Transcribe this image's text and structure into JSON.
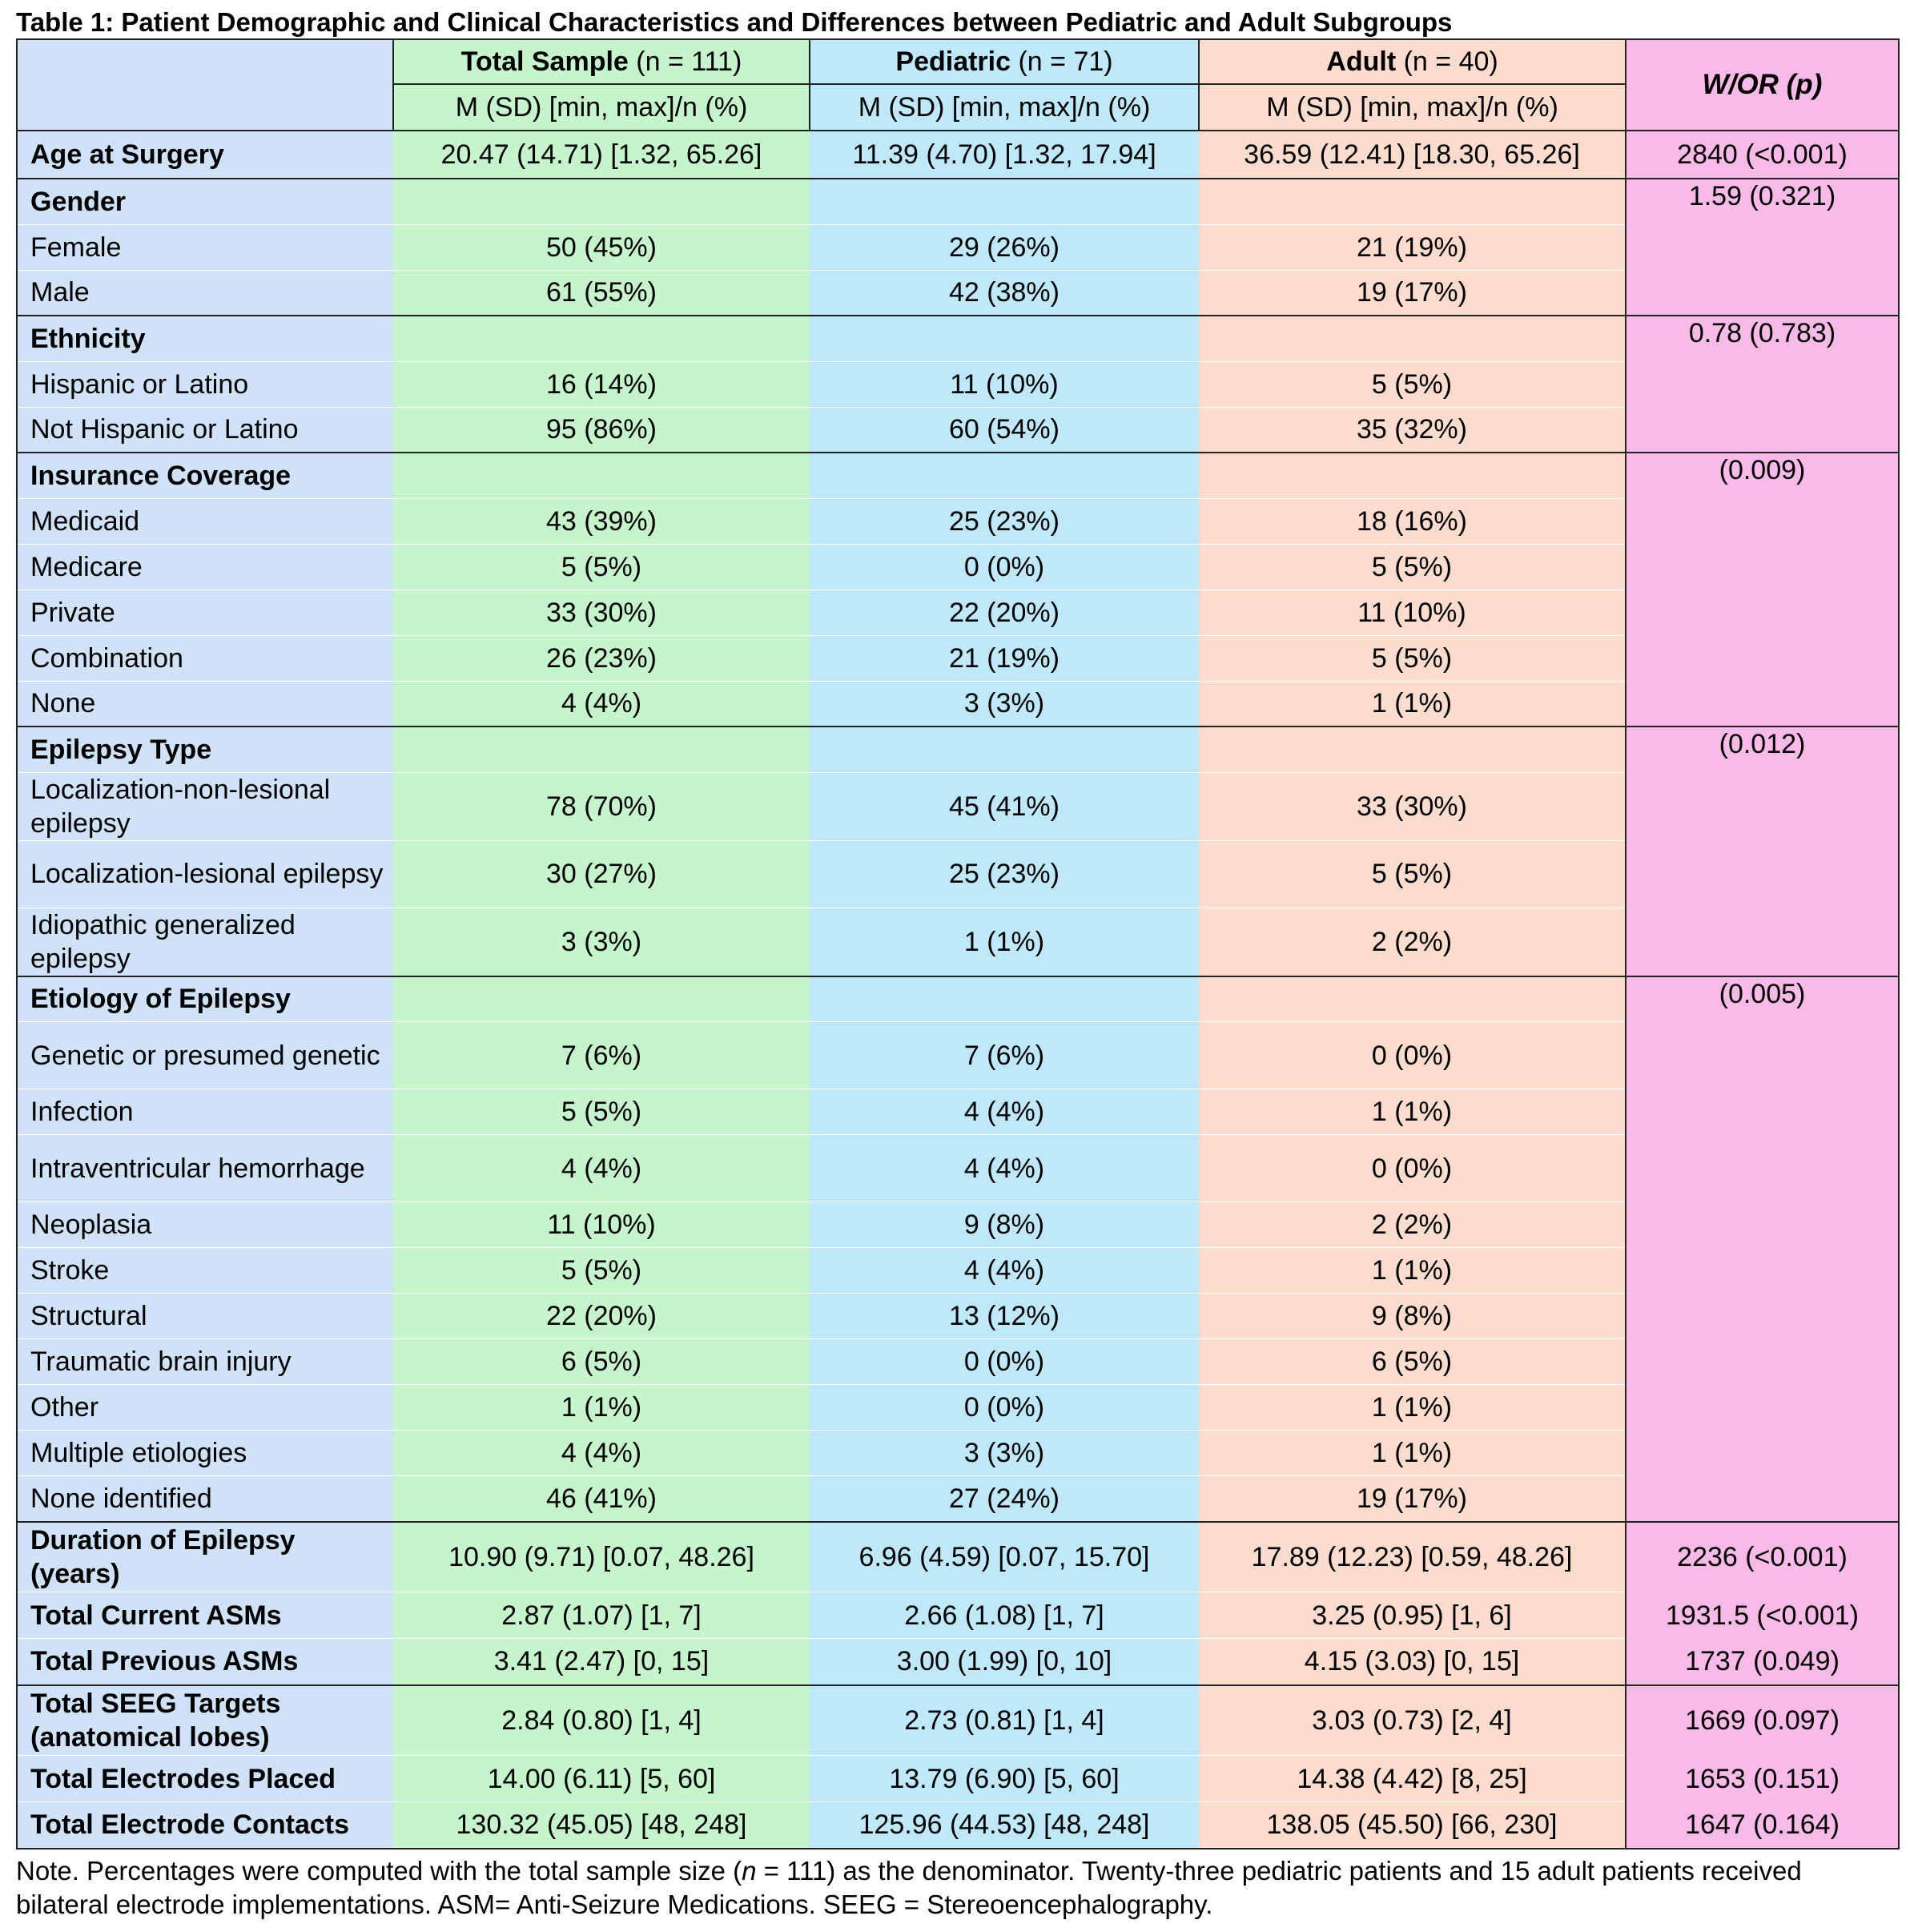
{
  "title": "Table 1: Patient Demographic and Clinical Characteristics and Differences between Pediatric and Adult Subgroups",
  "header": {
    "groups": [
      {
        "name": "Total Sample",
        "n": "(n = 111)"
      },
      {
        "name": "Pediatric",
        "n": "(n = 71)"
      },
      {
        "name": "Adult",
        "n": "(n = 40)"
      }
    ],
    "subheader": "M (SD) [min, max]/n (%)",
    "stat_label": "W/OR",
    "stat_p": "p"
  },
  "sections": [
    {
      "title": "Age at Surgery",
      "bold": true,
      "values": [
        "20.47 (14.71) [1.32, 65.26]",
        "11.39 (4.70) [1.32, 17.94]",
        "36.59 (12.41) [18.30, 65.26]"
      ],
      "stat": "2840 (<0.001)",
      "rows": []
    },
    {
      "title": "Gender",
      "stat": "1.59 (0.321)",
      "rows": [
        {
          "label": "Female",
          "values": [
            "50 (45%)",
            "29 (26%)",
            "21 (19%)"
          ]
        },
        {
          "label": "Male",
          "values": [
            "61 (55%)",
            "42 (38%)",
            "19 (17%)"
          ]
        }
      ]
    },
    {
      "title": "Ethnicity",
      "stat": "0.78 (0.783)",
      "rows": [
        {
          "label": "Hispanic or Latino",
          "values": [
            "16 (14%)",
            "11 (10%)",
            "5 (5%)"
          ]
        },
        {
          "label": "Not Hispanic or Latino",
          "values": [
            "95 (86%)",
            "60 (54%)",
            "35 (32%)"
          ]
        }
      ]
    },
    {
      "title": "Insurance Coverage",
      "stat": "(0.009)",
      "rows": [
        {
          "label": "Medicaid",
          "values": [
            "43 (39%)",
            "25 (23%)",
            "18 (16%)"
          ]
        },
        {
          "label": "Medicare",
          "values": [
            "5 (5%)",
            "0 (0%)",
            "5 (5%)"
          ]
        },
        {
          "label": "Private",
          "values": [
            "33 (30%)",
            "22 (20%)",
            "11 (10%)"
          ]
        },
        {
          "label": "Combination",
          "values": [
            "26 (23%)",
            "21 (19%)",
            "5 (5%)"
          ]
        },
        {
          "label": "None",
          "values": [
            "4 (4%)",
            "3 (3%)",
            "1 (1%)"
          ]
        }
      ]
    },
    {
      "title": "Epilepsy Type",
      "stat": "(0.012)",
      "rows": [
        {
          "label": "Localization-non-lesional epilepsy",
          "values": [
            "78 (70%)",
            "45 (41%)",
            "33 (30%)"
          ]
        },
        {
          "label": "Localization-lesional epilepsy",
          "values": [
            "30 (27%)",
            "25 (23%)",
            "5 (5%)"
          ]
        },
        {
          "label": "Idiopathic generalized epilepsy",
          "values": [
            "3 (3%)",
            "1 (1%)",
            "2 (2%)"
          ]
        }
      ]
    },
    {
      "title": "Etiology of Epilepsy",
      "stat": "(0.005)",
      "rows": [
        {
          "label": "Genetic or presumed genetic",
          "values": [
            "7 (6%)",
            "7 (6%)",
            "0 (0%)"
          ]
        },
        {
          "label": "Infection",
          "values": [
            "5 (5%)",
            "4 (4%)",
            "1 (1%)"
          ]
        },
        {
          "label": "Intraventricular hemorrhage",
          "values": [
            "4 (4%)",
            "4 (4%)",
            "0 (0%)"
          ]
        },
        {
          "label": "Neoplasia",
          "values": [
            "11 (10%)",
            "9 (8%)",
            "2 (2%)"
          ]
        },
        {
          "label": "Stroke",
          "values": [
            "5 (5%)",
            "4 (4%)",
            "1 (1%)"
          ]
        },
        {
          "label": "Structural",
          "values": [
            "22 (20%)",
            "13 (12%)",
            "9 (8%)"
          ]
        },
        {
          "label": "Traumatic brain injury",
          "values": [
            "6 (5%)",
            "0 (0%)",
            "6 (5%)"
          ]
        },
        {
          "label": "Other",
          "values": [
            "1 (1%)",
            "0 (0%)",
            "1 (1%)"
          ]
        },
        {
          "label": "Multiple etiologies",
          "values": [
            "4 (4%)",
            "3 (3%)",
            "1 (1%)"
          ]
        },
        {
          "label": "None identified",
          "values": [
            "46 (41%)",
            "27 (24%)",
            "19 (17%)"
          ]
        }
      ]
    }
  ],
  "clinical_rows": [
    {
      "label": "Duration of Epilepsy (years)",
      "values": [
        "10.90 (9.71) [0.07, 48.26]",
        "6.96 (4.59) [0.07, 15.70]",
        "17.89 (12.23) [0.59, 48.26]"
      ],
      "stat": "2236 (<0.001)"
    },
    {
      "label": "Total Current ASMs",
      "values": [
        "2.87 (1.07) [1, 7]",
        "2.66 (1.08) [1, 7]",
        "3.25 (0.95) [1, 6]"
      ],
      "stat": "1931.5 (<0.001)"
    },
    {
      "label": "Total Previous ASMs",
      "values": [
        "3.41 (2.47) [0, 15]",
        "3.00 (1.99) [0, 10]",
        "4.15 (3.03) [0, 15]"
      ],
      "stat": "1737 (0.049)"
    }
  ],
  "seeg_rows": [
    {
      "label": "Total SEEG Targets (anatomical lobes)",
      "values": [
        "2.84 (0.80) [1, 4]",
        "2.73 (0.81) [1, 4]",
        "3.03 (0.73) [2, 4]"
      ],
      "stat": "1669 (0.097)"
    },
    {
      "label": "Total Electrodes Placed",
      "values": [
        "14.00 (6.11) [5, 60]",
        "13.79 (6.90) [5, 60]",
        "14.38 (4.42) [8, 25]"
      ],
      "stat": "1653 (0.151)"
    },
    {
      "label": "Total Electrode Contacts",
      "values": [
        "130.32 (45.05) [48, 248]",
        "125.96 (44.53) [48, 248]",
        "138.05 (45.50) [66, 230]"
      ],
      "stat": "1647 (0.164)"
    }
  ],
  "note": {
    "prefix": "Note. Percentages were computed with the total sample size (",
    "n_symbol": "n",
    "suffix": " = 111) as the denominator. Twenty-three pediatric patients and 15 adult patients received bilateral electrode implementations. ASM= Anti-Seizure Medications. SEEG = Stereoencephalography."
  },
  "colors": {
    "label_col": "#cfe2f7",
    "total_col": "#c7f5cb",
    "pediatric_col": "#bfe9fa",
    "adult_col": "#fbdccd",
    "stat_col": "#f8bbe7"
  }
}
